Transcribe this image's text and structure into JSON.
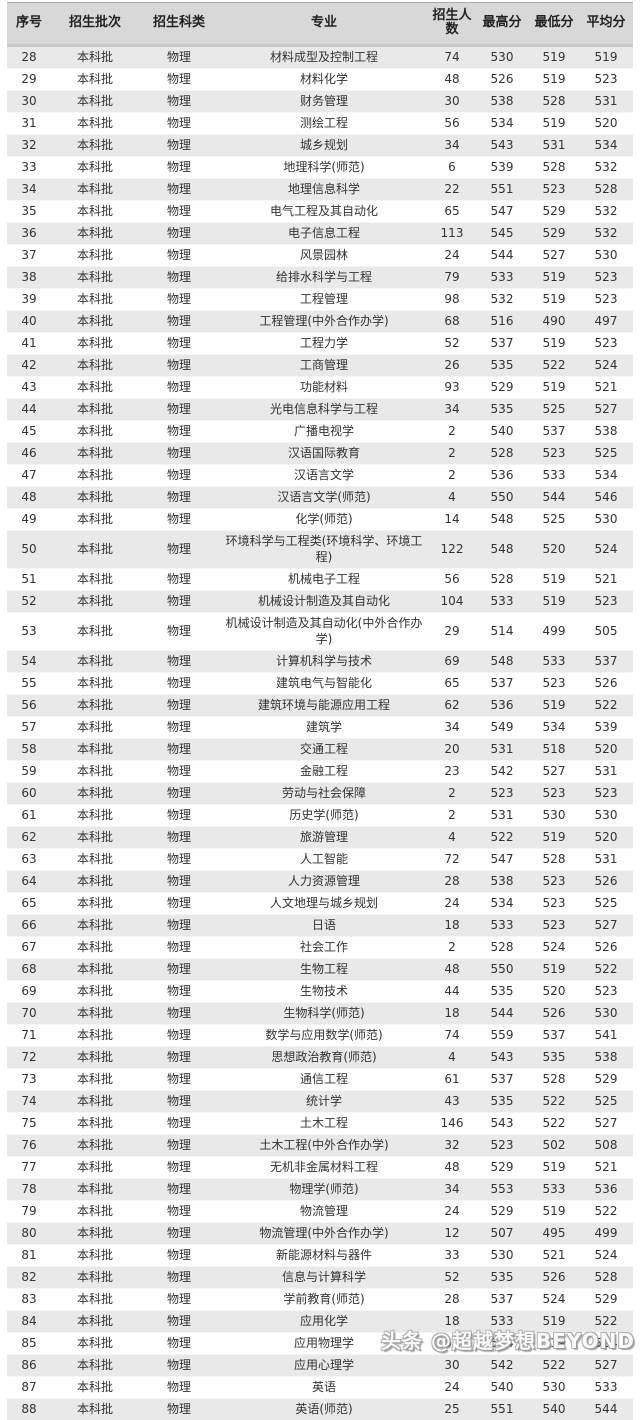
{
  "chart_data": {
    "type": "table",
    "title": "",
    "columns": [
      "序号",
      "招生批次",
      "招生科类",
      "专业",
      "招生人数",
      "最高分",
      "最低分",
      "平均分"
    ],
    "column_keys": [
      "index",
      "batch",
      "subject-category",
      "major",
      "enrollment",
      "max-score",
      "min-score",
      "avg-score"
    ],
    "rows": [
      [
        28,
        "本科批",
        "物理",
        "材料成型及控制工程",
        74,
        530,
        519,
        519
      ],
      [
        29,
        "本科批",
        "物理",
        "材料化学",
        48,
        526,
        519,
        523
      ],
      [
        30,
        "本科批",
        "物理",
        "财务管理",
        30,
        538,
        528,
        531
      ],
      [
        31,
        "本科批",
        "物理",
        "测绘工程",
        56,
        534,
        519,
        520
      ],
      [
        32,
        "本科批",
        "物理",
        "城乡规划",
        34,
        543,
        531,
        534
      ],
      [
        33,
        "本科批",
        "物理",
        "地理科学(师范)",
        6,
        539,
        528,
        532
      ],
      [
        34,
        "本科批",
        "物理",
        "地理信息科学",
        22,
        551,
        523,
        528
      ],
      [
        35,
        "本科批",
        "物理",
        "电气工程及其自动化",
        65,
        547,
        529,
        532
      ],
      [
        36,
        "本科批",
        "物理",
        "电子信息工程",
        113,
        545,
        529,
        532
      ],
      [
        37,
        "本科批",
        "物理",
        "风景园林",
        24,
        544,
        527,
        530
      ],
      [
        38,
        "本科批",
        "物理",
        "给排水科学与工程",
        79,
        533,
        519,
        523
      ],
      [
        39,
        "本科批",
        "物理",
        "工程管理",
        98,
        532,
        519,
        523
      ],
      [
        40,
        "本科批",
        "物理",
        "工程管理(中外合作办学)",
        68,
        516,
        490,
        497
      ],
      [
        41,
        "本科批",
        "物理",
        "工程力学",
        52,
        537,
        519,
        523
      ],
      [
        42,
        "本科批",
        "物理",
        "工商管理",
        26,
        535,
        522,
        524
      ],
      [
        43,
        "本科批",
        "物理",
        "功能材料",
        93,
        529,
        519,
        521
      ],
      [
        44,
        "本科批",
        "物理",
        "光电信息科学与工程",
        34,
        535,
        525,
        527
      ],
      [
        45,
        "本科批",
        "物理",
        "广播电视学",
        2,
        540,
        537,
        538
      ],
      [
        46,
        "本科批",
        "物理",
        "汉语国际教育",
        2,
        528,
        523,
        525
      ],
      [
        47,
        "本科批",
        "物理",
        "汉语言文学",
        2,
        536,
        533,
        534
      ],
      [
        48,
        "本科批",
        "物理",
        "汉语言文学(师范)",
        4,
        550,
        544,
        546
      ],
      [
        49,
        "本科批",
        "物理",
        "化学(师范)",
        14,
        548,
        525,
        530
      ],
      [
        50,
        "本科批",
        "物理",
        "环境科学与工程类(环境科学、环境工程)",
        122,
        548,
        520,
        524
      ],
      [
        51,
        "本科批",
        "物理",
        "机械电子工程",
        56,
        528,
        519,
        521
      ],
      [
        52,
        "本科批",
        "物理",
        "机械设计制造及其自动化",
        104,
        533,
        519,
        523
      ],
      [
        53,
        "本科批",
        "物理",
        "机械设计制造及其自动化(中外合作办学)",
        29,
        514,
        499,
        505
      ],
      [
        54,
        "本科批",
        "物理",
        "计算机科学与技术",
        69,
        548,
        533,
        537
      ],
      [
        55,
        "本科批",
        "物理",
        "建筑电气与智能化",
        65,
        537,
        523,
        526
      ],
      [
        56,
        "本科批",
        "物理",
        "建筑环境与能源应用工程",
        62,
        536,
        519,
        522
      ],
      [
        57,
        "本科批",
        "物理",
        "建筑学",
        34,
        549,
        534,
        539
      ],
      [
        58,
        "本科批",
        "物理",
        "交通工程",
        20,
        531,
        518,
        520
      ],
      [
        59,
        "本科批",
        "物理",
        "金融工程",
        23,
        542,
        527,
        531
      ],
      [
        60,
        "本科批",
        "物理",
        "劳动与社会保障",
        2,
        523,
        523,
        523
      ],
      [
        61,
        "本科批",
        "物理",
        "历史学(师范)",
        2,
        531,
        530,
        530
      ],
      [
        62,
        "本科批",
        "物理",
        "旅游管理",
        4,
        522,
        519,
        520
      ],
      [
        63,
        "本科批",
        "物理",
        "人工智能",
        72,
        547,
        528,
        531
      ],
      [
        64,
        "本科批",
        "物理",
        "人力资源管理",
        28,
        538,
        523,
        526
      ],
      [
        65,
        "本科批",
        "物理",
        "人文地理与城乡规划",
        24,
        534,
        523,
        525
      ],
      [
        66,
        "本科批",
        "物理",
        "日语",
        18,
        533,
        523,
        527
      ],
      [
        67,
        "本科批",
        "物理",
        "社会工作",
        2,
        528,
        524,
        526
      ],
      [
        68,
        "本科批",
        "物理",
        "生物工程",
        48,
        550,
        519,
        522
      ],
      [
        69,
        "本科批",
        "物理",
        "生物技术",
        44,
        535,
        520,
        523
      ],
      [
        70,
        "本科批",
        "物理",
        "生物科学(师范)",
        18,
        544,
        526,
        530
      ],
      [
        71,
        "本科批",
        "物理",
        "数学与应用数学(师范)",
        74,
        559,
        537,
        541
      ],
      [
        72,
        "本科批",
        "物理",
        "思想政治教育(师范)",
        4,
        543,
        535,
        538
      ],
      [
        73,
        "本科批",
        "物理",
        "通信工程",
        61,
        537,
        528,
        529
      ],
      [
        74,
        "本科批",
        "物理",
        "统计学",
        43,
        535,
        522,
        525
      ],
      [
        75,
        "本科批",
        "物理",
        "土木工程",
        146,
        543,
        522,
        527
      ],
      [
        76,
        "本科批",
        "物理",
        "土木工程(中外合作办学)",
        32,
        523,
        502,
        508
      ],
      [
        77,
        "本科批",
        "物理",
        "无机非金属材料工程",
        48,
        529,
        519,
        521
      ],
      [
        78,
        "本科批",
        "物理",
        "物理学(师范)",
        34,
        553,
        533,
        536
      ],
      [
        79,
        "本科批",
        "物理",
        "物流管理",
        24,
        529,
        519,
        522
      ],
      [
        80,
        "本科批",
        "物理",
        "物流管理(中外合作办学)",
        12,
        507,
        495,
        499
      ],
      [
        81,
        "本科批",
        "物理",
        "新能源材料与器件",
        33,
        530,
        521,
        524
      ],
      [
        82,
        "本科批",
        "物理",
        "信息与计算科学",
        52,
        535,
        526,
        528
      ],
      [
        83,
        "本科批",
        "物理",
        "学前教育(师范)",
        28,
        537,
        524,
        529
      ],
      [
        84,
        "本科批",
        "物理",
        "应用化学",
        18,
        533,
        519,
        522
      ],
      [
        85,
        "本科批",
        "物理",
        "应用物理学",
        57,
        534,
        519,
        524
      ],
      [
        86,
        "本科批",
        "物理",
        "应用心理学",
        30,
        542,
        522,
        527
      ],
      [
        87,
        "本科批",
        "物理",
        "英语",
        24,
        540,
        530,
        533
      ],
      [
        88,
        "本科批",
        "物理",
        "英语(师范)",
        25,
        551,
        540,
        544
      ]
    ],
    "layout_hints": {
      "grid": "horizontal-stripes",
      "stripe_start": "first-data-row-shaded",
      "header_position": "top"
    }
  },
  "watermark": {
    "text": "头条 @超越梦想BEYOND"
  },
  "colors": {
    "header_background": "#d8d8d8",
    "stripe_background": "#e9e9e9",
    "row_background": "#ffffff",
    "text": "#333333",
    "header_text": "#222222",
    "watermark_fill": "#ffffff",
    "watermark_outline": "#9b9b9b"
  }
}
